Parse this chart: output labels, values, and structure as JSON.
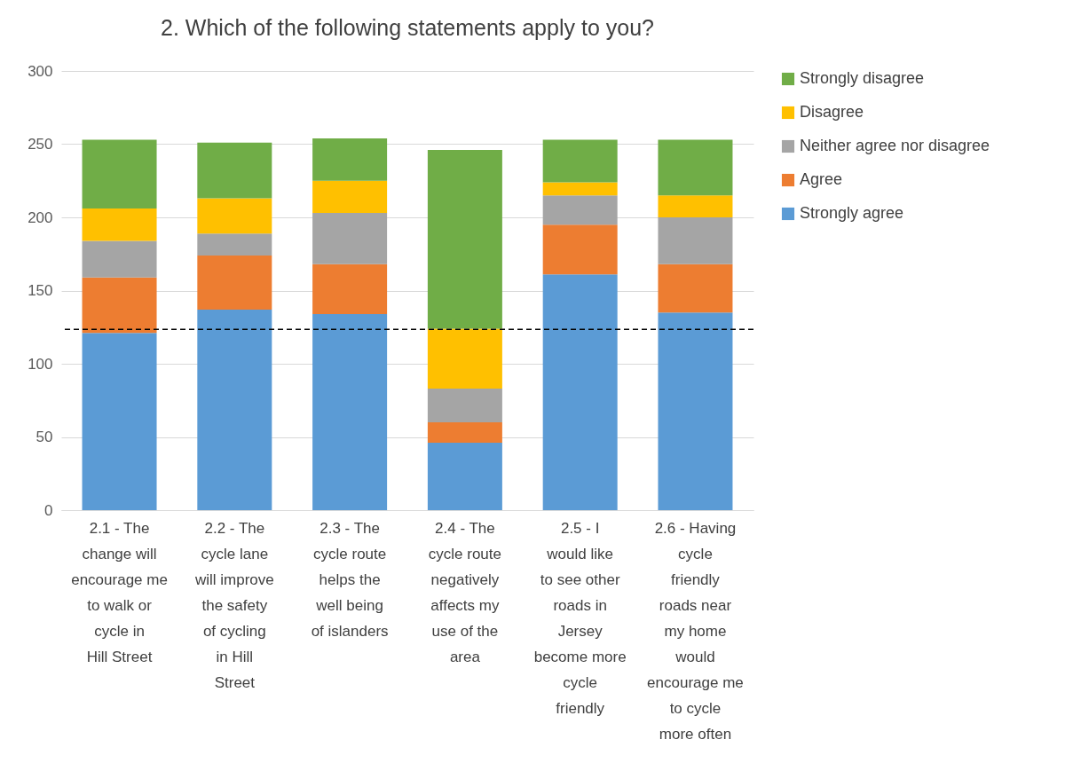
{
  "chart_data": {
    "type": "bar",
    "stacked": true,
    "title": "2. Which of the following statements apply to you?",
    "categories": [
      "2.1 - The change will encourage me to walk or cycle in Hill Street",
      "2.2 - The cycle lane will improve the safety of cycling in Hill Street",
      "2.3 - The cycle route helps the well being of islanders",
      "2.4 - The cycle route negatively affects my use of the area",
      "2.5 - I would like to see other roads in Jersey become more cycle friendly",
      "2.6 - Having cycle friendly roads near my home would encourage me to cycle more often"
    ],
    "series": [
      {
        "name": "Strongly agree",
        "color": "#5b9bd5",
        "values": [
          121,
          137,
          134,
          46,
          161,
          135
        ]
      },
      {
        "name": "Agree",
        "color": "#ed7d31",
        "values": [
          38,
          37,
          34,
          14,
          34,
          33
        ]
      },
      {
        "name": "Neither agree nor disagree",
        "color": "#a5a5a5",
        "values": [
          25,
          15,
          35,
          23,
          20,
          32
        ]
      },
      {
        "name": "Disagree",
        "color": "#ffc000",
        "values": [
          22,
          24,
          22,
          41,
          9,
          15
        ]
      },
      {
        "name": "Strongly disagree",
        "color": "#70ad47",
        "values": [
          47,
          38,
          29,
          122,
          29,
          38
        ]
      }
    ],
    "ylim": [
      0,
      300
    ],
    "yticks": [
      0,
      50,
      100,
      150,
      200,
      250,
      300
    ],
    "grid": "y",
    "legend": "right",
    "ref_lines": [
      {
        "axis": "y",
        "value": 123.5,
        "color": "#000000",
        "line_style": "dashed"
      }
    ]
  }
}
